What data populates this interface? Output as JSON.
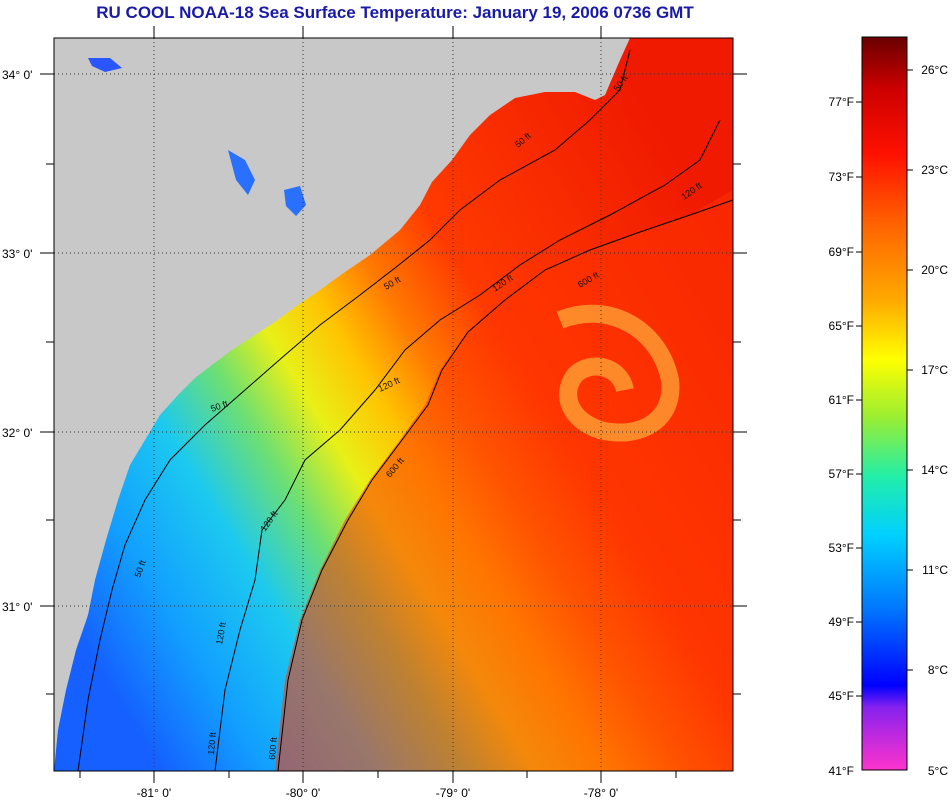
{
  "title": "RU COOL  NOAA-18  Sea Surface Temperature:  January 19, 2006 0736 GMT",
  "map": {
    "lat_labels": [
      "34° 0'",
      "33° 0'",
      "32° 0'",
      "31° 0'"
    ],
    "lon_labels": [
      "-81° 0'",
      "-80° 0'",
      "-79° 0'",
      "-78° 0'"
    ],
    "contour_labels": [
      "50 ft",
      "50 ft",
      "50 ft",
      "50 ft",
      "50 ft",
      "120 ft",
      "120 ft",
      "120 ft",
      "120 ft",
      "120 ft",
      "120 ft",
      "600 ft",
      "600 ft",
      "600 ft"
    ],
    "colors": {
      "land": "#c8c8c8",
      "cold": "#1aa0ff",
      "warm": "#ff2a00",
      "contour": "#000000"
    }
  },
  "colorbar": {
    "fahrenheit_labels": [
      "77°F",
      "73°F",
      "69°F",
      "65°F",
      "61°F",
      "57°F",
      "53°F",
      "49°F",
      "45°F",
      "41°F"
    ],
    "celsius_labels": [
      "26°C",
      "23°C",
      "20°C",
      "17°C",
      "14°C",
      "11°C",
      "8°C",
      "5°C"
    ]
  }
}
